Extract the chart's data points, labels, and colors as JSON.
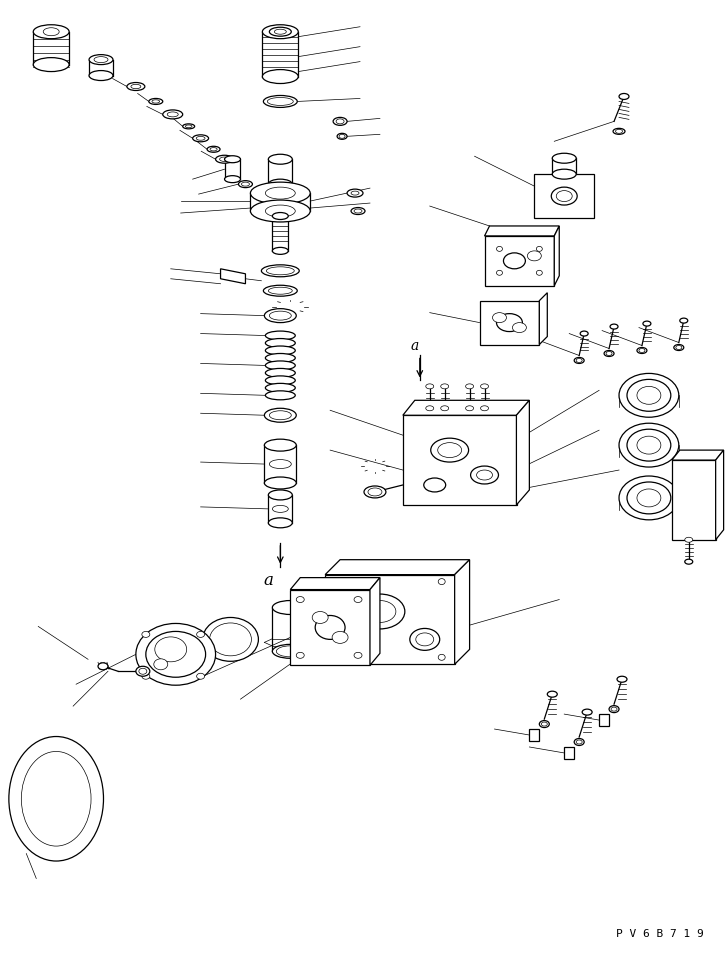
{
  "background_color": "#ffffff",
  "line_color": "#000000",
  "watermark": "P V 6 B 7 1 9",
  "fig_width": 7.27,
  "fig_height": 9.58,
  "dpi": 100,
  "lw_main": 0.9,
  "lw_thin": 0.5,
  "lw_leader": 0.6
}
